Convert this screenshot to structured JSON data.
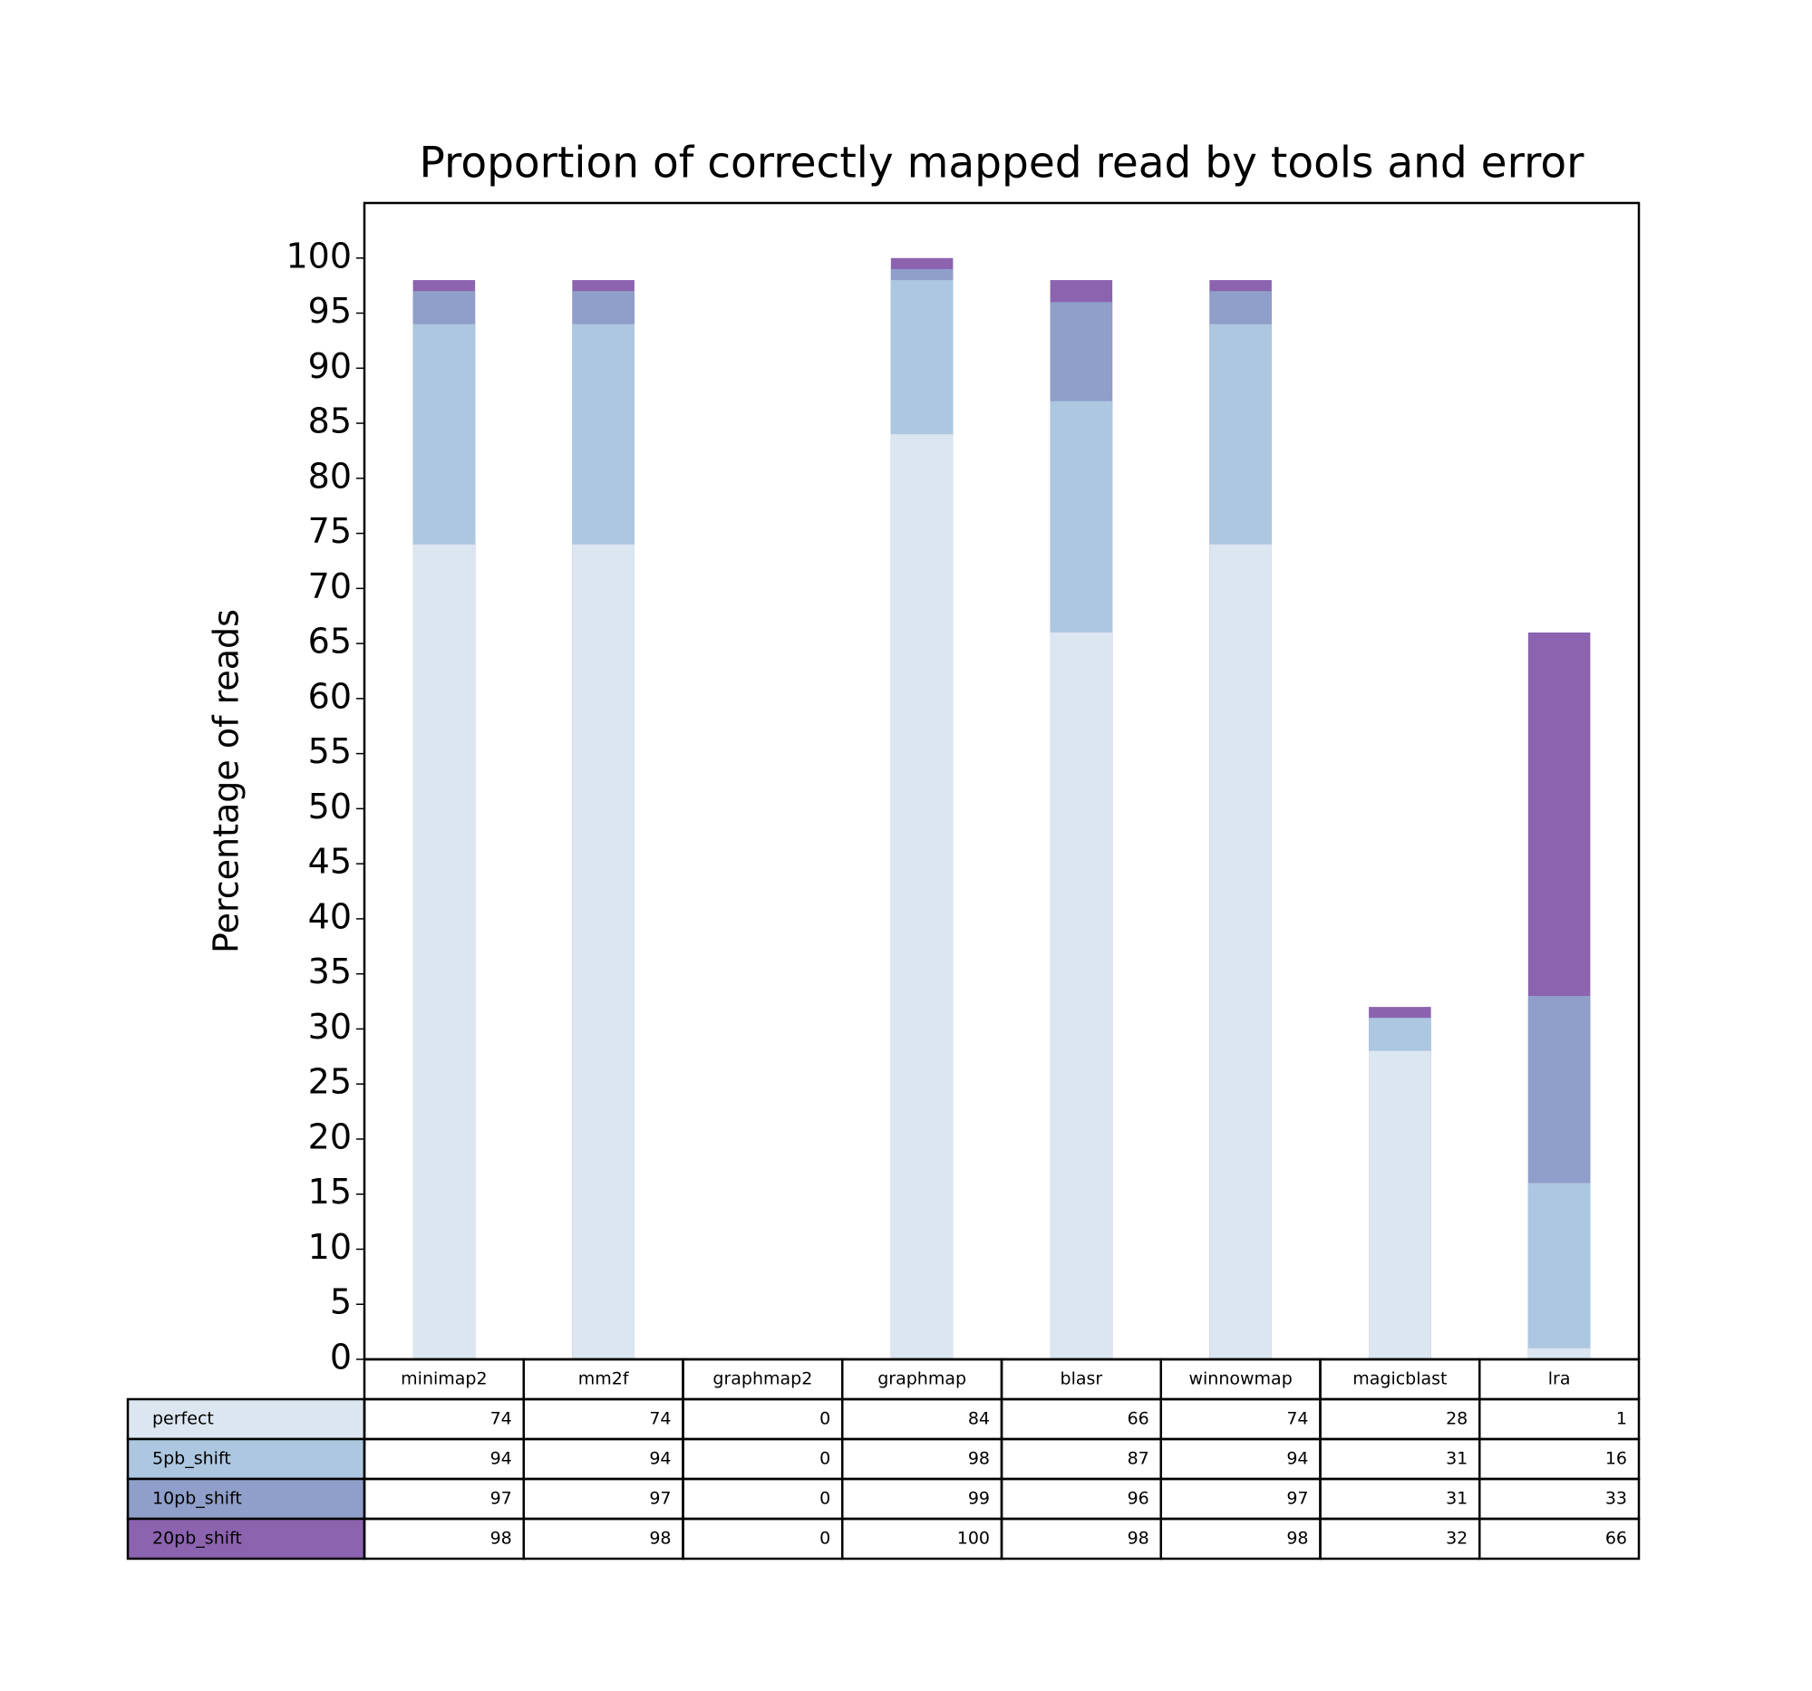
{
  "chart_data": {
    "type": "bar",
    "title": "Proportion of correctly mapped read by tools and error",
    "y_label": "Percentage of reads",
    "categories": [
      "minimap2",
      "mm2f",
      "graphmap2",
      "graphmap",
      "blasr",
      "winnowmap",
      "magicblast",
      "lra"
    ],
    "series": [
      {
        "name": "perfect",
        "color": "#dce6f0",
        "values": [
          74,
          74,
          0,
          84,
          66,
          74,
          28,
          1
        ]
      },
      {
        "name": "5pb_shift",
        "color": "#adc7e0",
        "values": [
          94,
          94,
          0,
          98,
          87,
          94,
          31,
          16
        ]
      },
      {
        "name": "10pb_shift",
        "color": "#8f9fc9",
        "values": [
          97,
          97,
          0,
          99,
          96,
          97,
          31,
          33
        ]
      },
      {
        "name": "20pb_shift",
        "color": "#8c63af",
        "values": [
          98,
          98,
          0,
          100,
          98,
          98,
          32,
          66
        ]
      }
    ],
    "ylim": [
      0,
      105
    ],
    "yticks": [
      0,
      5,
      10,
      15,
      20,
      25,
      30,
      35,
      40,
      45,
      50,
      55,
      60,
      65,
      70,
      75,
      80,
      85,
      90,
      95,
      100
    ]
  }
}
